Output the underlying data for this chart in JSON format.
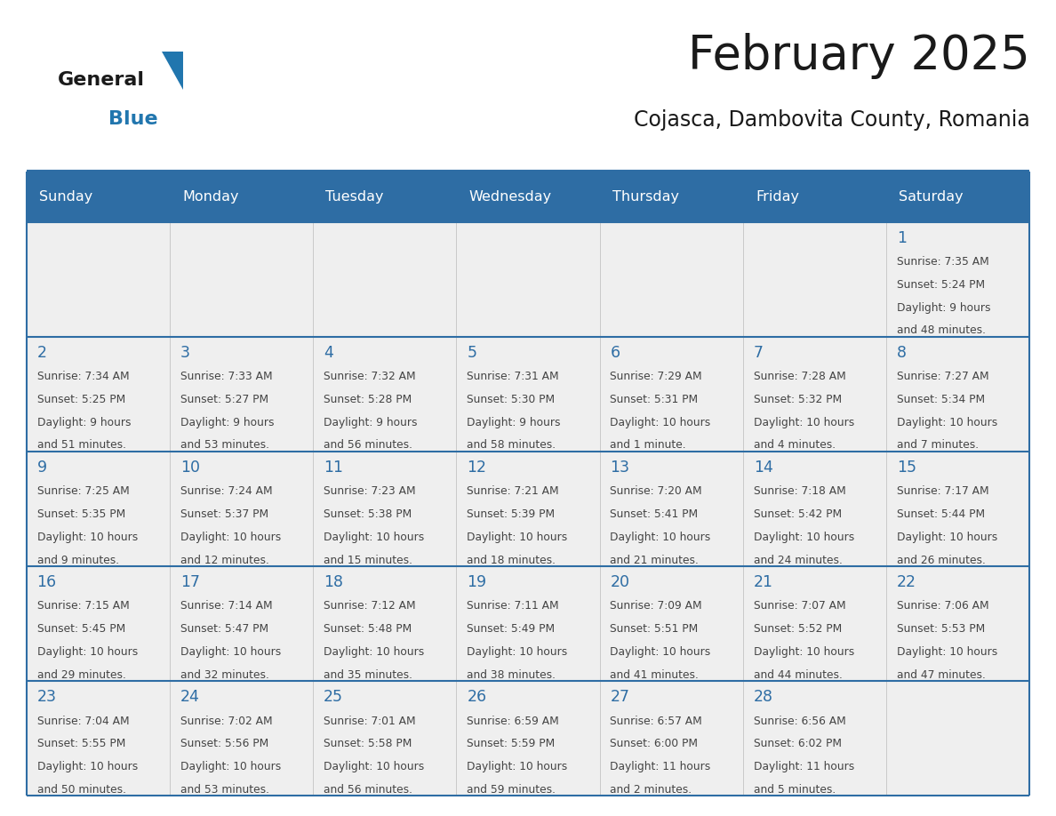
{
  "title": "February 2025",
  "subtitle": "Cojasca, Dambovita County, Romania",
  "header_bg": "#2E6DA4",
  "header_text": "#FFFFFF",
  "cell_bg": "#EFEFEF",
  "day_number_color": "#2E6DA4",
  "text_color": "#444444",
  "line_color": "#2E6DA4",
  "days_of_week": [
    "Sunday",
    "Monday",
    "Tuesday",
    "Wednesday",
    "Thursday",
    "Friday",
    "Saturday"
  ],
  "weeks": [
    [
      {
        "day": null,
        "info": null
      },
      {
        "day": null,
        "info": null
      },
      {
        "day": null,
        "info": null
      },
      {
        "day": null,
        "info": null
      },
      {
        "day": null,
        "info": null
      },
      {
        "day": null,
        "info": null
      },
      {
        "day": 1,
        "info": "Sunrise: 7:35 AM\nSunset: 5:24 PM\nDaylight: 9 hours\nand 48 minutes."
      }
    ],
    [
      {
        "day": 2,
        "info": "Sunrise: 7:34 AM\nSunset: 5:25 PM\nDaylight: 9 hours\nand 51 minutes."
      },
      {
        "day": 3,
        "info": "Sunrise: 7:33 AM\nSunset: 5:27 PM\nDaylight: 9 hours\nand 53 minutes."
      },
      {
        "day": 4,
        "info": "Sunrise: 7:32 AM\nSunset: 5:28 PM\nDaylight: 9 hours\nand 56 minutes."
      },
      {
        "day": 5,
        "info": "Sunrise: 7:31 AM\nSunset: 5:30 PM\nDaylight: 9 hours\nand 58 minutes."
      },
      {
        "day": 6,
        "info": "Sunrise: 7:29 AM\nSunset: 5:31 PM\nDaylight: 10 hours\nand 1 minute."
      },
      {
        "day": 7,
        "info": "Sunrise: 7:28 AM\nSunset: 5:32 PM\nDaylight: 10 hours\nand 4 minutes."
      },
      {
        "day": 8,
        "info": "Sunrise: 7:27 AM\nSunset: 5:34 PM\nDaylight: 10 hours\nand 7 minutes."
      }
    ],
    [
      {
        "day": 9,
        "info": "Sunrise: 7:25 AM\nSunset: 5:35 PM\nDaylight: 10 hours\nand 9 minutes."
      },
      {
        "day": 10,
        "info": "Sunrise: 7:24 AM\nSunset: 5:37 PM\nDaylight: 10 hours\nand 12 minutes."
      },
      {
        "day": 11,
        "info": "Sunrise: 7:23 AM\nSunset: 5:38 PM\nDaylight: 10 hours\nand 15 minutes."
      },
      {
        "day": 12,
        "info": "Sunrise: 7:21 AM\nSunset: 5:39 PM\nDaylight: 10 hours\nand 18 minutes."
      },
      {
        "day": 13,
        "info": "Sunrise: 7:20 AM\nSunset: 5:41 PM\nDaylight: 10 hours\nand 21 minutes."
      },
      {
        "day": 14,
        "info": "Sunrise: 7:18 AM\nSunset: 5:42 PM\nDaylight: 10 hours\nand 24 minutes."
      },
      {
        "day": 15,
        "info": "Sunrise: 7:17 AM\nSunset: 5:44 PM\nDaylight: 10 hours\nand 26 minutes."
      }
    ],
    [
      {
        "day": 16,
        "info": "Sunrise: 7:15 AM\nSunset: 5:45 PM\nDaylight: 10 hours\nand 29 minutes."
      },
      {
        "day": 17,
        "info": "Sunrise: 7:14 AM\nSunset: 5:47 PM\nDaylight: 10 hours\nand 32 minutes."
      },
      {
        "day": 18,
        "info": "Sunrise: 7:12 AM\nSunset: 5:48 PM\nDaylight: 10 hours\nand 35 minutes."
      },
      {
        "day": 19,
        "info": "Sunrise: 7:11 AM\nSunset: 5:49 PM\nDaylight: 10 hours\nand 38 minutes."
      },
      {
        "day": 20,
        "info": "Sunrise: 7:09 AM\nSunset: 5:51 PM\nDaylight: 10 hours\nand 41 minutes."
      },
      {
        "day": 21,
        "info": "Sunrise: 7:07 AM\nSunset: 5:52 PM\nDaylight: 10 hours\nand 44 minutes."
      },
      {
        "day": 22,
        "info": "Sunrise: 7:06 AM\nSunset: 5:53 PM\nDaylight: 10 hours\nand 47 minutes."
      }
    ],
    [
      {
        "day": 23,
        "info": "Sunrise: 7:04 AM\nSunset: 5:55 PM\nDaylight: 10 hours\nand 50 minutes."
      },
      {
        "day": 24,
        "info": "Sunrise: 7:02 AM\nSunset: 5:56 PM\nDaylight: 10 hours\nand 53 minutes."
      },
      {
        "day": 25,
        "info": "Sunrise: 7:01 AM\nSunset: 5:58 PM\nDaylight: 10 hours\nand 56 minutes."
      },
      {
        "day": 26,
        "info": "Sunrise: 6:59 AM\nSunset: 5:59 PM\nDaylight: 10 hours\nand 59 minutes."
      },
      {
        "day": 27,
        "info": "Sunrise: 6:57 AM\nSunset: 6:00 PM\nDaylight: 11 hours\nand 2 minutes."
      },
      {
        "day": 28,
        "info": "Sunrise: 6:56 AM\nSunset: 6:02 PM\nDaylight: 11 hours\nand 5 minutes."
      },
      {
        "day": null,
        "info": null
      }
    ]
  ],
  "logo_general_color": "#1a1a1a",
  "logo_blue_color": "#2176AE",
  "logo_triangle_color": "#2176AE",
  "title_color": "#1a1a1a",
  "subtitle_color": "#1a1a1a"
}
